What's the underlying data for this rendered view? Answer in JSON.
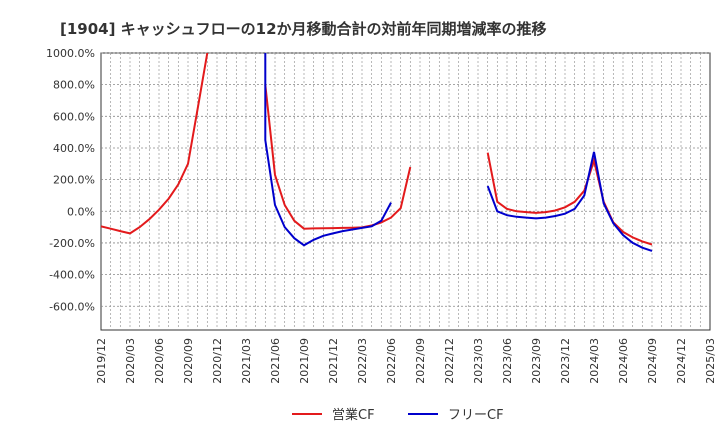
{
  "chart_data": {
    "type": "line",
    "title": "[1904]  キャッシュフローの12か月移動合計の対前年同期増減率の推移",
    "xlabel": "",
    "ylabel": "",
    "ylim": [
      -750,
      1000
    ],
    "yticks": [
      1000,
      800,
      600,
      400,
      200,
      0,
      -200,
      -400,
      -600
    ],
    "ytick_labels": [
      "1000.0%",
      "800.0%",
      "600.0%",
      "400.0%",
      "200.0%",
      "0.0%",
      "-200.0%",
      "-400.0%",
      "-600.0%"
    ],
    "x_tick_labels": [
      "2019/12",
      "2020/03",
      "2020/06",
      "2020/09",
      "2020/12",
      "2021/03",
      "2021/06",
      "2021/09",
      "2021/12",
      "2022/03",
      "2022/06",
      "2022/09",
      "2022/12",
      "2023/03",
      "2023/06",
      "2023/09",
      "2023/12",
      "2024/03",
      "2024/06",
      "2024/09",
      "2024/12",
      "2025/03"
    ],
    "grid": true,
    "legend_position": "bottom-center",
    "series": [
      {
        "name": "営業CF",
        "color": "#e31a1c",
        "points": [
          [
            "2019/12",
            -95
          ],
          [
            "2020/01",
            -110
          ],
          [
            "2020/02",
            -125
          ],
          [
            "2020/03",
            -140
          ],
          [
            "2020/04",
            -100
          ],
          [
            "2020/05",
            -50
          ],
          [
            "2020/06",
            10
          ],
          [
            "2020/07",
            80
          ],
          [
            "2020/08",
            170
          ],
          [
            "2020/09",
            300
          ],
          [
            "2020/10",
            650
          ],
          [
            "2020/11",
            1000
          ],
          null,
          [
            "2021/05",
            800
          ],
          [
            "2021/06",
            230
          ],
          [
            "2021/07",
            40
          ],
          [
            "2021/08",
            -60
          ],
          [
            "2021/09",
            -110
          ],
          [
            "2021/10",
            -108
          ],
          [
            "2021/11",
            -107
          ],
          [
            "2021/12",
            -106
          ],
          [
            "2022/01",
            -105
          ],
          [
            "2022/02",
            -104
          ],
          [
            "2022/03",
            -102
          ],
          [
            "2022/04",
            -90
          ],
          [
            "2022/05",
            -70
          ],
          [
            "2022/06",
            -40
          ],
          [
            "2022/07",
            20
          ],
          [
            "2022/08",
            280
          ],
          null,
          [
            "2023/04",
            370
          ],
          [
            "2023/05",
            60
          ],
          [
            "2023/06",
            15
          ],
          [
            "2023/07",
            0
          ],
          [
            "2023/08",
            -5
          ],
          [
            "2023/09",
            -10
          ],
          [
            "2023/10",
            -5
          ],
          [
            "2023/11",
            5
          ],
          [
            "2023/12",
            25
          ],
          [
            "2024/01",
            60
          ],
          [
            "2024/02",
            130
          ],
          [
            "2024/03",
            320
          ],
          [
            "2024/04",
            60
          ],
          [
            "2024/05",
            -70
          ],
          [
            "2024/06",
            -130
          ],
          [
            "2024/07",
            -165
          ],
          [
            "2024/08",
            -190
          ],
          [
            "2024/09",
            -210
          ]
        ]
      },
      {
        "name": "フリーCF",
        "color": "#0000cc",
        "points": [
          [
            "2021/05",
            1000
          ],
          [
            "2021/05",
            450
          ],
          [
            "2021/06",
            40
          ],
          [
            "2021/07",
            -100
          ],
          [
            "2021/08",
            -170
          ],
          [
            "2021/09",
            -215
          ],
          [
            "2021/10",
            -180
          ],
          [
            "2021/11",
            -155
          ],
          [
            "2021/12",
            -140
          ],
          [
            "2022/01",
            -125
          ],
          [
            "2022/02",
            -115
          ],
          [
            "2022/03",
            -105
          ],
          [
            "2022/04",
            -95
          ],
          [
            "2022/05",
            -60
          ],
          [
            "2022/06",
            55
          ],
          null,
          [
            "2023/04",
            160
          ],
          [
            "2023/05",
            0
          ],
          [
            "2023/06",
            -25
          ],
          [
            "2023/07",
            -35
          ],
          [
            "2023/08",
            -40
          ],
          [
            "2023/09",
            -45
          ],
          [
            "2023/10",
            -40
          ],
          [
            "2023/11",
            -30
          ],
          [
            "2023/12",
            -15
          ],
          [
            "2024/01",
            15
          ],
          [
            "2024/02",
            100
          ],
          [
            "2024/03",
            375
          ],
          [
            "2024/04",
            50
          ],
          [
            "2024/05",
            -75
          ],
          [
            "2024/06",
            -150
          ],
          [
            "2024/07",
            -200
          ],
          [
            "2024/08",
            -230
          ],
          [
            "2024/09",
            -250
          ]
        ]
      }
    ]
  }
}
